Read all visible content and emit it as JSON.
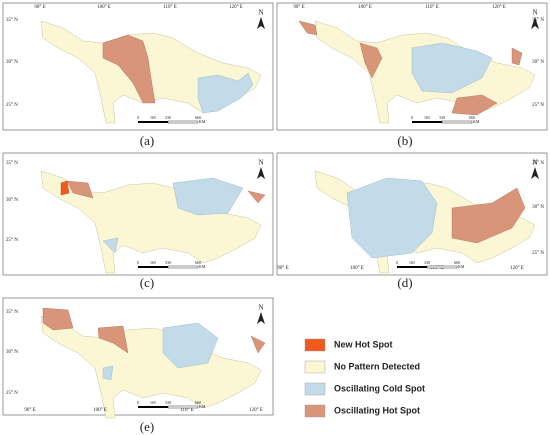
{
  "panels": [
    {
      "label": "(a)",
      "lon_ticks": [
        "90° E",
        "100° E",
        "110° E",
        "120° E"
      ],
      "lat_ticks": [
        "35° N",
        "30° N",
        "25° N"
      ]
    },
    {
      "label": "(b)",
      "lon_ticks": [
        "90° E",
        "100° E",
        "110° E",
        "120° E"
      ],
      "lat_ticks": [
        "35° N",
        "30° N",
        "25° N"
      ]
    },
    {
      "label": "(c)",
      "lon_ticks": [],
      "lat_ticks": [
        "35° N",
        "30° N",
        "25° N"
      ]
    },
    {
      "label": "(d)",
      "lon_ticks": [
        "90° E",
        "100° E",
        "110° E",
        "120° E"
      ],
      "lat_ticks": [
        "35° N",
        "30° N",
        "25° N"
      ]
    },
    {
      "label": "(e)",
      "lon_ticks": [
        "90° E",
        "100° E",
        "110° E",
        "120° E"
      ],
      "lat_ticks": [
        "35° N",
        "30° N",
        "25° N"
      ]
    }
  ],
  "north": "N",
  "scale": {
    "labels": [
      "0",
      "165",
      "330",
      "660"
    ],
    "unit": "KM"
  },
  "legend": [
    {
      "label": "New Hot Spot",
      "color": "#f05a1e"
    },
    {
      "label": "No Pattern Detected",
      "color": "#fbf7d4"
    },
    {
      "label": "Oscillating Cold Spot",
      "color": "#c3dbe8"
    },
    {
      "label": "Oscillating Hot Spot",
      "color": "#d9957a"
    }
  ]
}
